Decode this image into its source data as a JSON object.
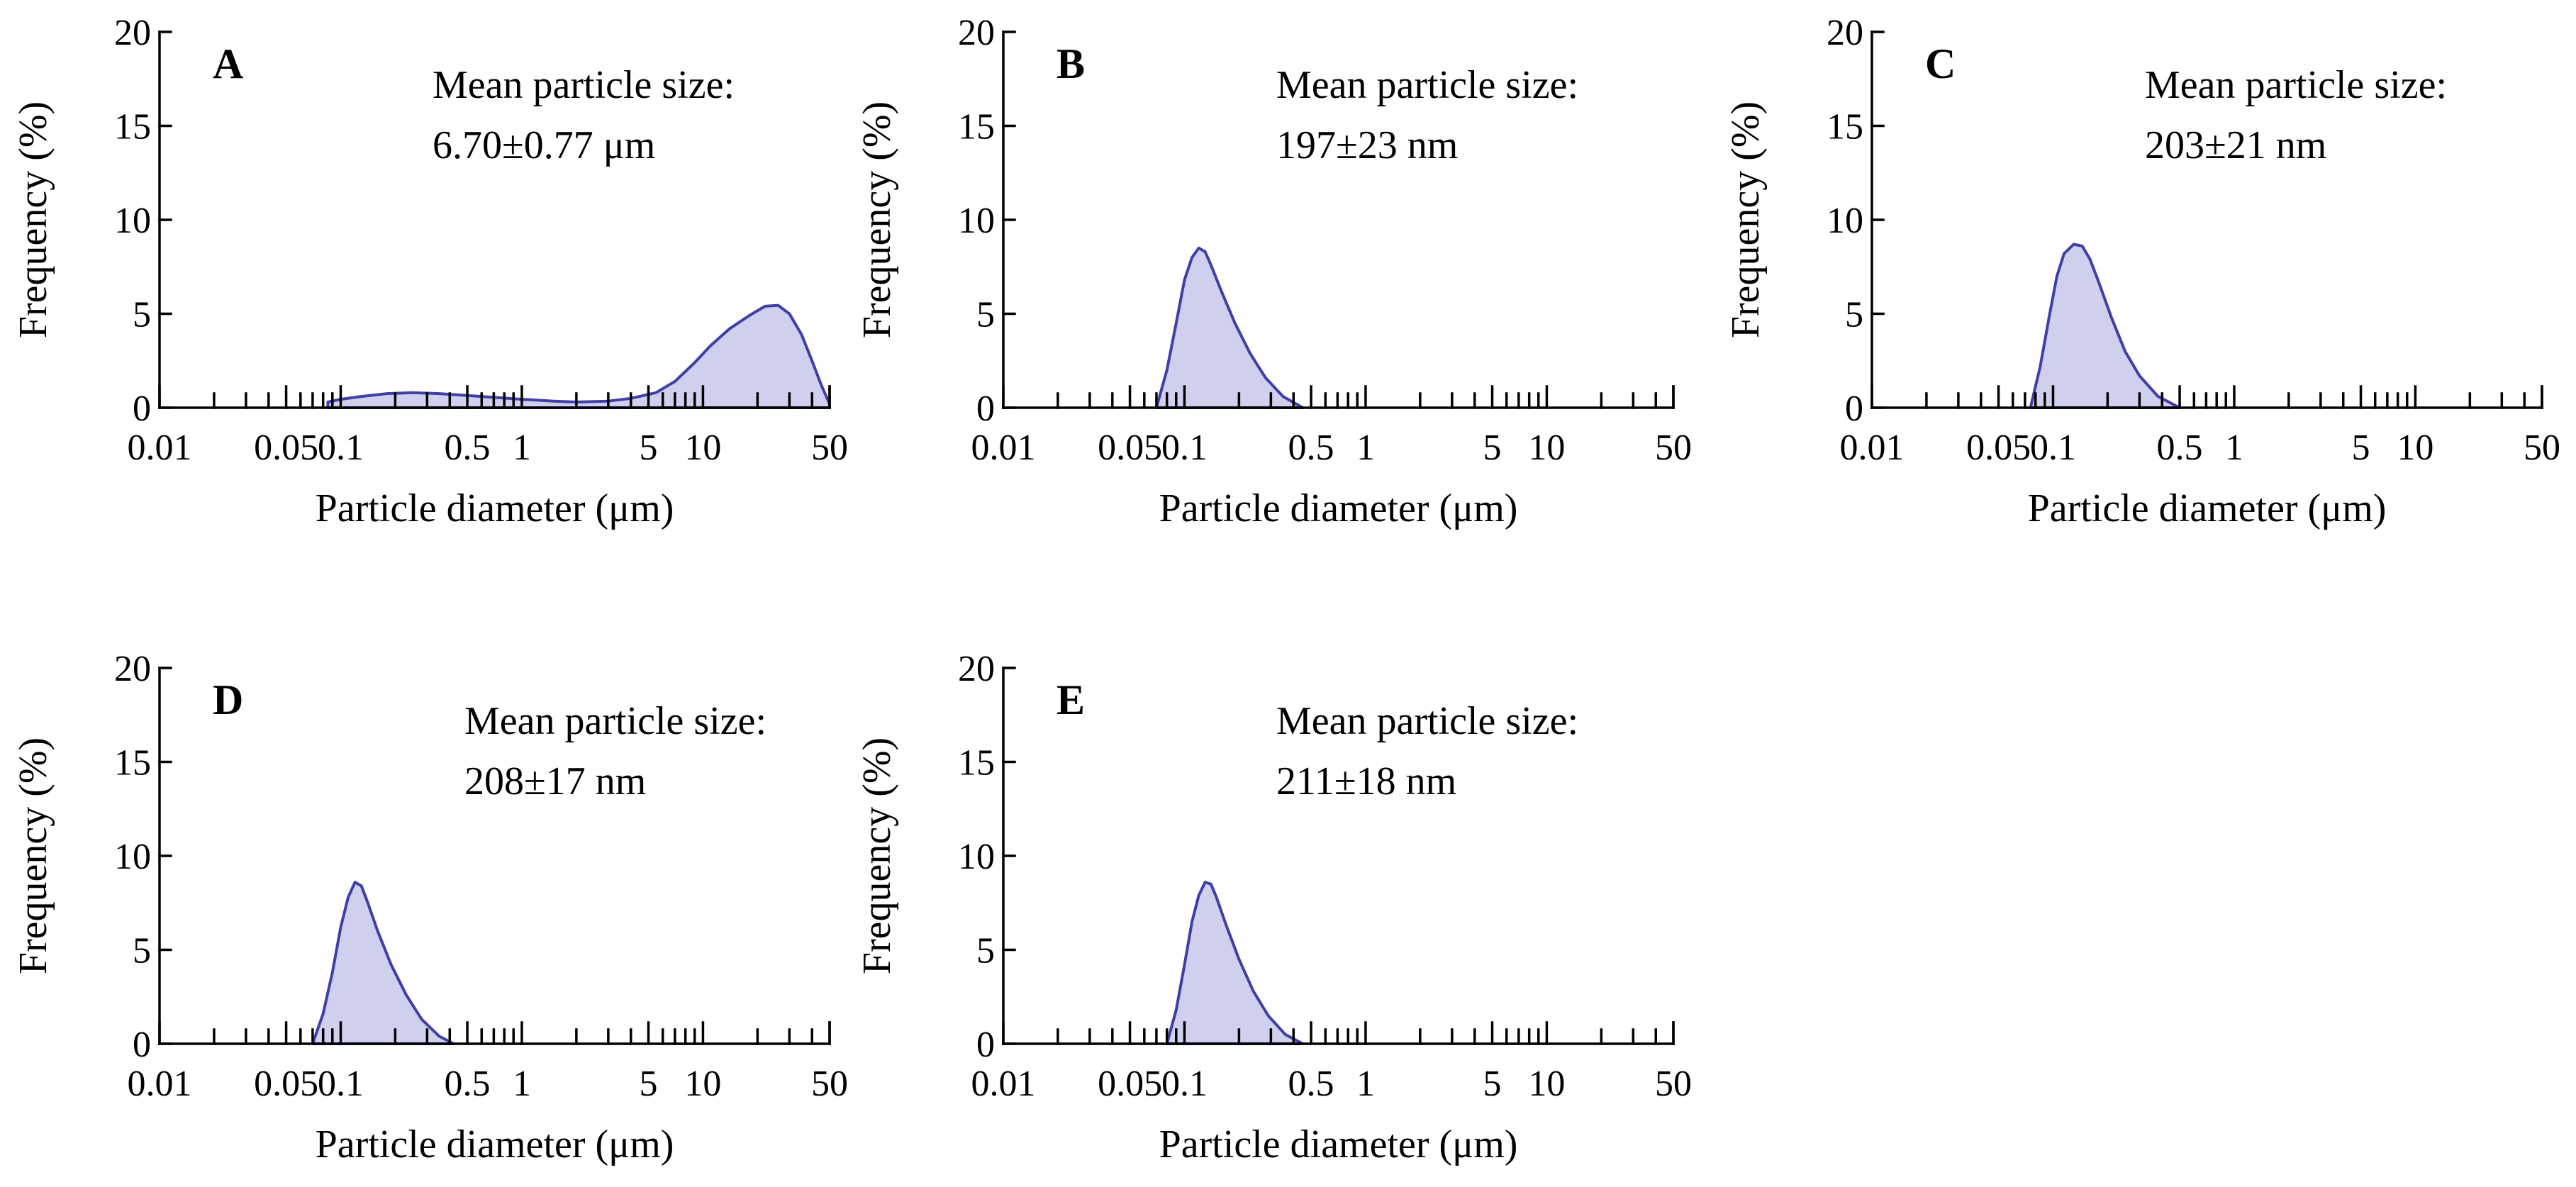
{
  "colors": {
    "stroke": "#3f3fa6",
    "fill": "#cfd0ee",
    "axis": "#000000"
  },
  "chart_data": [
    {
      "panel": "A",
      "type": "area",
      "title": "",
      "xlabel": "Particle diameter (μm)",
      "ylabel": "Frequency (%)",
      "xscale": "log",
      "xlim": [
        0.01,
        50
      ],
      "ylim": [
        0,
        20
      ],
      "xticks": [
        "0.01",
        "0.05",
        "0.1",
        "0.5",
        "1",
        "5",
        "10",
        "50"
      ],
      "yticks": [
        "0",
        "5",
        "10",
        "15",
        "20"
      ],
      "annotation": [
        "Mean particle size:",
        "6.70±0.77  μm"
      ],
      "x": [
        0.085,
        0.1,
        0.13,
        0.18,
        0.25,
        0.35,
        0.5,
        0.7,
        1.0,
        1.5,
        2.0,
        3.0,
        4.0,
        5.5,
        7.0,
        9.0,
        11.0,
        14.0,
        18.0,
        22.0,
        26.0,
        30.0,
        35.0,
        40.0,
        45.0,
        50.0
      ],
      "y": [
        0.3,
        0.45,
        0.6,
        0.75,
        0.8,
        0.75,
        0.65,
        0.55,
        0.45,
        0.35,
        0.3,
        0.35,
        0.5,
        0.8,
        1.4,
        2.4,
        3.3,
        4.2,
        4.9,
        5.4,
        5.45,
        5.0,
        3.9,
        2.5,
        1.2,
        0.2
      ]
    },
    {
      "panel": "B",
      "type": "area",
      "title": "",
      "xlabel": "Particle diameter (μm)",
      "ylabel": "Frequency (%)",
      "xscale": "log",
      "xlim": [
        0.01,
        50
      ],
      "ylim": [
        0,
        20
      ],
      "xticks": [
        "0.01",
        "0.05",
        "0.1",
        "0.5",
        "1",
        "5",
        "10",
        "50"
      ],
      "yticks": [
        "0",
        "5",
        "10",
        "15",
        "20"
      ],
      "annotation": [
        "Mean particle size:",
        "197±23  nm"
      ],
      "x": [
        0.07,
        0.08,
        0.09,
        0.1,
        0.11,
        0.12,
        0.13,
        0.14,
        0.16,
        0.19,
        0.23,
        0.28,
        0.35,
        0.45
      ],
      "y": [
        0.0,
        2.0,
        4.5,
        6.8,
        8.0,
        8.5,
        8.3,
        7.6,
        6.2,
        4.5,
        2.9,
        1.6,
        0.6,
        0.0
      ]
    },
    {
      "panel": "C",
      "type": "area",
      "title": "",
      "xlabel": "Particle diameter (μm)",
      "ylabel": "Frequency (%)",
      "xscale": "log",
      "xlim": [
        0.01,
        50
      ],
      "ylim": [
        0,
        20
      ],
      "xticks": [
        "0.01",
        "0.05",
        "0.1",
        "0.5",
        "1",
        "5",
        "10",
        "50"
      ],
      "yticks": [
        "0",
        "5",
        "10",
        "15",
        "20"
      ],
      "annotation": [
        "Mean particle size:",
        "203±21  nm"
      ],
      "x": [
        0.075,
        0.085,
        0.095,
        0.105,
        0.115,
        0.13,
        0.145,
        0.16,
        0.18,
        0.21,
        0.25,
        0.3,
        0.38,
        0.5
      ],
      "y": [
        0.0,
        2.2,
        4.8,
        7.0,
        8.2,
        8.7,
        8.6,
        7.9,
        6.6,
        4.8,
        3.0,
        1.7,
        0.6,
        0.0
      ]
    },
    {
      "panel": "D",
      "type": "area",
      "title": "",
      "xlabel": "Particle diameter (μm)",
      "ylabel": "Frequency (%)",
      "xscale": "log",
      "xlim": [
        0.01,
        50
      ],
      "ylim": [
        0,
        20
      ],
      "xticks": [
        "0.01",
        "0.05",
        "0.1",
        "0.5",
        "1",
        "5",
        "10",
        "50"
      ],
      "yticks": [
        "0",
        "5",
        "10",
        "15",
        "20"
      ],
      "annotation": [
        "Mean particle size:",
        "208±17  nm"
      ],
      "x": [
        0.07,
        0.08,
        0.09,
        0.1,
        0.11,
        0.12,
        0.13,
        0.14,
        0.16,
        0.19,
        0.23,
        0.28,
        0.35,
        0.42
      ],
      "y": [
        0.0,
        1.6,
        3.8,
        6.2,
        7.8,
        8.6,
        8.4,
        7.6,
        6.0,
        4.2,
        2.6,
        1.3,
        0.4,
        0.0
      ]
    },
    {
      "panel": "E",
      "type": "area",
      "title": "",
      "xlabel": "Particle diameter (μm)",
      "ylabel": "Frequency (%)",
      "xscale": "log",
      "xlim": [
        0.01,
        50
      ],
      "ylim": [
        0,
        20
      ],
      "xticks": [
        "0.01",
        "0.05",
        "0.1",
        "0.5",
        "1",
        "5",
        "10",
        "50"
      ],
      "yticks": [
        "0",
        "5",
        "10",
        "15",
        "20"
      ],
      "annotation": [
        "Mean particle size:",
        "211±18  nm"
      ],
      "x": [
        0.08,
        0.09,
        0.1,
        0.11,
        0.12,
        0.13,
        0.14,
        0.15,
        0.17,
        0.2,
        0.24,
        0.29,
        0.36,
        0.45
      ],
      "y": [
        0.0,
        1.8,
        4.2,
        6.5,
        7.9,
        8.6,
        8.5,
        7.8,
        6.3,
        4.5,
        2.8,
        1.5,
        0.5,
        0.0
      ]
    }
  ]
}
